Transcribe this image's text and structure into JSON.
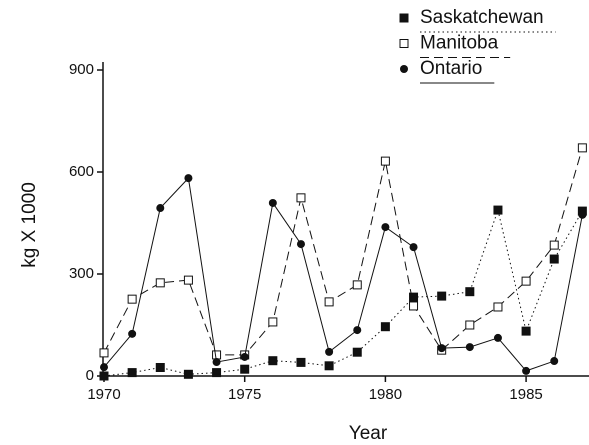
{
  "chart_data": {
    "type": "line",
    "y_label": "kg X 1000",
    "x_label": "Year",
    "x": [
      1970,
      1971,
      1972,
      1973,
      1974,
      1975,
      1976,
      1977,
      1978,
      1979,
      1980,
      1981,
      1982,
      1983,
      1984,
      1985,
      1986,
      1987
    ],
    "series": [
      {
        "name": "Saskatchewan",
        "color": "#111111",
        "marker": "filled-square",
        "dash": "1.5 3",
        "values": [
          0,
          10,
          25,
          5,
          10,
          20,
          45,
          40,
          30,
          70,
          145,
          232,
          235,
          248,
          488,
          132,
          344,
          485
        ]
      },
      {
        "name": "Manitoba",
        "color": "#111111",
        "marker": "open-square",
        "dash": "9 5",
        "values": [
          68,
          226,
          274,
          282,
          62,
          62,
          159,
          524,
          218,
          268,
          632,
          206,
          76,
          150,
          203,
          279,
          385,
          671
        ]
      },
      {
        "name": "Ontario",
        "color": "#111111",
        "marker": "filled-circle",
        "dash": "none",
        "values": [
          26,
          124,
          494,
          582,
          41,
          56,
          509,
          388,
          71,
          135,
          438,
          379,
          82,
          85,
          112,
          15,
          44,
          474
        ]
      }
    ],
    "xlim": [
      1970,
      1987.2
    ],
    "xticks": [
      1970,
      1975,
      1980,
      1985
    ],
    "ylim": [
      0,
      900
    ],
    "yticks": [
      0,
      300,
      600,
      900
    ],
    "legend": "top-right",
    "grid": false
  }
}
